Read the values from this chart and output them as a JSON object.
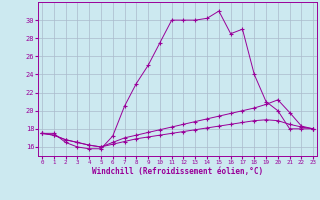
{
  "xlabel": "Windchill (Refroidissement éolien,°C)",
  "background_color": "#cce9f0",
  "line_color": "#990099",
  "grid_color": "#aabbcc",
  "x_ticks": [
    0,
    1,
    2,
    3,
    4,
    5,
    6,
    7,
    8,
    9,
    10,
    11,
    12,
    13,
    14,
    15,
    16,
    17,
    18,
    19,
    20,
    21,
    22,
    23
  ],
  "ylim": [
    15.0,
    32.0
  ],
  "xlim": [
    -0.3,
    23.3
  ],
  "yticks": [
    16,
    18,
    20,
    22,
    24,
    26,
    28,
    30
  ],
  "series": [
    [
      17.5,
      17.5,
      16.5,
      16.0,
      15.8,
      15.8,
      17.2,
      20.5,
      23.0,
      25.0,
      27.5,
      30.0,
      30.0,
      30.0,
      30.2,
      31.0,
      28.5,
      29.0,
      24.0,
      21.0,
      20.0,
      18.0,
      18.0,
      18.0
    ],
    [
      17.5,
      17.3,
      16.8,
      16.5,
      16.2,
      16.0,
      16.5,
      17.0,
      17.3,
      17.6,
      17.9,
      18.2,
      18.5,
      18.8,
      19.1,
      19.4,
      19.7,
      20.0,
      20.3,
      20.7,
      21.2,
      19.8,
      18.3,
      18.0
    ],
    [
      17.5,
      17.3,
      16.8,
      16.5,
      16.2,
      16.0,
      16.3,
      16.6,
      16.9,
      17.1,
      17.3,
      17.5,
      17.7,
      17.9,
      18.1,
      18.3,
      18.5,
      18.7,
      18.9,
      19.0,
      18.9,
      18.5,
      18.2,
      18.0
    ]
  ]
}
